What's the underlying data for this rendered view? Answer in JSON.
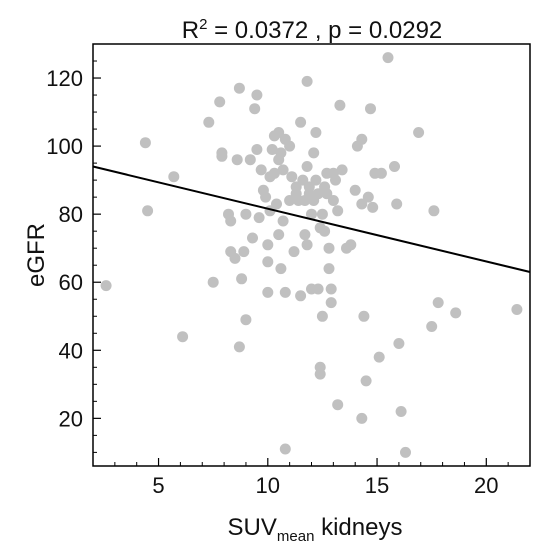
{
  "chart_data": {
    "type": "scatter",
    "title": {
      "base": "R",
      "sup": "2",
      "rest": " = 0.0372 ,  p = 0.0292"
    },
    "xlabel": {
      "main": "SUV",
      "sub": "mean",
      "rest": " kidneys"
    },
    "ylabel": "eGFR",
    "xlim": [
      2,
      22
    ],
    "ylim": [
      6,
      130
    ],
    "xticks": [
      5,
      10,
      15,
      20
    ],
    "yticks": [
      20,
      40,
      60,
      80,
      100,
      120
    ],
    "xtick_labels": [
      "5",
      "10",
      "15",
      "20"
    ],
    "ytick_labels": [
      "20",
      "40",
      "60",
      "80",
      "100",
      "120"
    ],
    "grid": false,
    "point_color": "#c0c0c0",
    "line_color": "#000000",
    "regression_line": {
      "x": [
        2,
        22
      ],
      "y": [
        94,
        63
      ]
    },
    "points": [
      {
        "x": 2.6,
        "y": 59
      },
      {
        "x": 4.4,
        "y": 101
      },
      {
        "x": 4.5,
        "y": 81
      },
      {
        "x": 5.7,
        "y": 91
      },
      {
        "x": 6.1,
        "y": 44
      },
      {
        "x": 7.3,
        "y": 107
      },
      {
        "x": 7.5,
        "y": 60
      },
      {
        "x": 7.8,
        "y": 113
      },
      {
        "x": 7.9,
        "y": 97
      },
      {
        "x": 7.9,
        "y": 98
      },
      {
        "x": 8.2,
        "y": 80
      },
      {
        "x": 8.3,
        "y": 78
      },
      {
        "x": 8.3,
        "y": 69
      },
      {
        "x": 8.5,
        "y": 67
      },
      {
        "x": 8.6,
        "y": 96
      },
      {
        "x": 8.7,
        "y": 117
      },
      {
        "x": 8.7,
        "y": 41
      },
      {
        "x": 8.8,
        "y": 61
      },
      {
        "x": 8.9,
        "y": 69
      },
      {
        "x": 9.0,
        "y": 80
      },
      {
        "x": 9.0,
        "y": 49
      },
      {
        "x": 9.2,
        "y": 96
      },
      {
        "x": 9.3,
        "y": 73
      },
      {
        "x": 9.4,
        "y": 111
      },
      {
        "x": 9.5,
        "y": 115
      },
      {
        "x": 9.5,
        "y": 99
      },
      {
        "x": 9.6,
        "y": 79
      },
      {
        "x": 9.7,
        "y": 93
      },
      {
        "x": 9.8,
        "y": 87
      },
      {
        "x": 9.9,
        "y": 85
      },
      {
        "x": 10.0,
        "y": 71
      },
      {
        "x": 10.0,
        "y": 66
      },
      {
        "x": 10.0,
        "y": 57
      },
      {
        "x": 10.1,
        "y": 91
      },
      {
        "x": 10.1,
        "y": 81
      },
      {
        "x": 10.2,
        "y": 99
      },
      {
        "x": 10.3,
        "y": 103
      },
      {
        "x": 10.3,
        "y": 92
      },
      {
        "x": 10.4,
        "y": 83
      },
      {
        "x": 10.5,
        "y": 104
      },
      {
        "x": 10.5,
        "y": 96
      },
      {
        "x": 10.5,
        "y": 74
      },
      {
        "x": 10.6,
        "y": 98
      },
      {
        "x": 10.6,
        "y": 64
      },
      {
        "x": 10.7,
        "y": 93
      },
      {
        "x": 10.7,
        "y": 78
      },
      {
        "x": 10.8,
        "y": 102
      },
      {
        "x": 10.8,
        "y": 57
      },
      {
        "x": 10.8,
        "y": 11
      },
      {
        "x": 11.0,
        "y": 84
      },
      {
        "x": 11.0,
        "y": 100
      },
      {
        "x": 11.1,
        "y": 91
      },
      {
        "x": 11.2,
        "y": 69
      },
      {
        "x": 11.3,
        "y": 86
      },
      {
        "x": 11.3,
        "y": 88
      },
      {
        "x": 11.4,
        "y": 84
      },
      {
        "x": 11.5,
        "y": 107
      },
      {
        "x": 11.5,
        "y": 56
      },
      {
        "x": 11.6,
        "y": 90
      },
      {
        "x": 11.7,
        "y": 74
      },
      {
        "x": 11.7,
        "y": 84
      },
      {
        "x": 11.8,
        "y": 119
      },
      {
        "x": 11.8,
        "y": 94
      },
      {
        "x": 11.8,
        "y": 71
      },
      {
        "x": 11.9,
        "y": 88
      },
      {
        "x": 11.9,
        "y": 86
      },
      {
        "x": 12.0,
        "y": 80
      },
      {
        "x": 12.0,
        "y": 58
      },
      {
        "x": 12.1,
        "y": 84
      },
      {
        "x": 12.1,
        "y": 98
      },
      {
        "x": 12.2,
        "y": 104
      },
      {
        "x": 12.2,
        "y": 90
      },
      {
        "x": 12.3,
        "y": 86
      },
      {
        "x": 12.3,
        "y": 58
      },
      {
        "x": 12.4,
        "y": 76
      },
      {
        "x": 12.4,
        "y": 35
      },
      {
        "x": 12.4,
        "y": 33
      },
      {
        "x": 12.5,
        "y": 50
      },
      {
        "x": 12.5,
        "y": 80
      },
      {
        "x": 12.6,
        "y": 88
      },
      {
        "x": 12.6,
        "y": 75
      },
      {
        "x": 12.7,
        "y": 92
      },
      {
        "x": 12.7,
        "y": 86
      },
      {
        "x": 12.8,
        "y": 70
      },
      {
        "x": 12.8,
        "y": 64
      },
      {
        "x": 12.9,
        "y": 58
      },
      {
        "x": 12.9,
        "y": 54
      },
      {
        "x": 13.0,
        "y": 84
      },
      {
        "x": 13.0,
        "y": 92
      },
      {
        "x": 13.1,
        "y": 90
      },
      {
        "x": 13.2,
        "y": 81
      },
      {
        "x": 13.2,
        "y": 24
      },
      {
        "x": 13.3,
        "y": 112
      },
      {
        "x": 13.4,
        "y": 93
      },
      {
        "x": 13.6,
        "y": 70
      },
      {
        "x": 13.8,
        "y": 71
      },
      {
        "x": 14.0,
        "y": 87
      },
      {
        "x": 14.1,
        "y": 100
      },
      {
        "x": 14.3,
        "y": 20
      },
      {
        "x": 14.3,
        "y": 102
      },
      {
        "x": 14.3,
        "y": 83
      },
      {
        "x": 14.4,
        "y": 50
      },
      {
        "x": 14.5,
        "y": 31
      },
      {
        "x": 14.6,
        "y": 85
      },
      {
        "x": 14.7,
        "y": 111
      },
      {
        "x": 14.8,
        "y": 82
      },
      {
        "x": 14.9,
        "y": 92
      },
      {
        "x": 15.1,
        "y": 38
      },
      {
        "x": 15.2,
        "y": 92
      },
      {
        "x": 15.5,
        "y": 126
      },
      {
        "x": 15.8,
        "y": 94
      },
      {
        "x": 15.9,
        "y": 83
      },
      {
        "x": 16.0,
        "y": 42
      },
      {
        "x": 16.1,
        "y": 22
      },
      {
        "x": 16.3,
        "y": 10
      },
      {
        "x": 16.9,
        "y": 104
      },
      {
        "x": 17.5,
        "y": 47
      },
      {
        "x": 17.6,
        "y": 81
      },
      {
        "x": 17.8,
        "y": 54
      },
      {
        "x": 18.6,
        "y": 51
      },
      {
        "x": 21.4,
        "y": 52
      }
    ]
  }
}
